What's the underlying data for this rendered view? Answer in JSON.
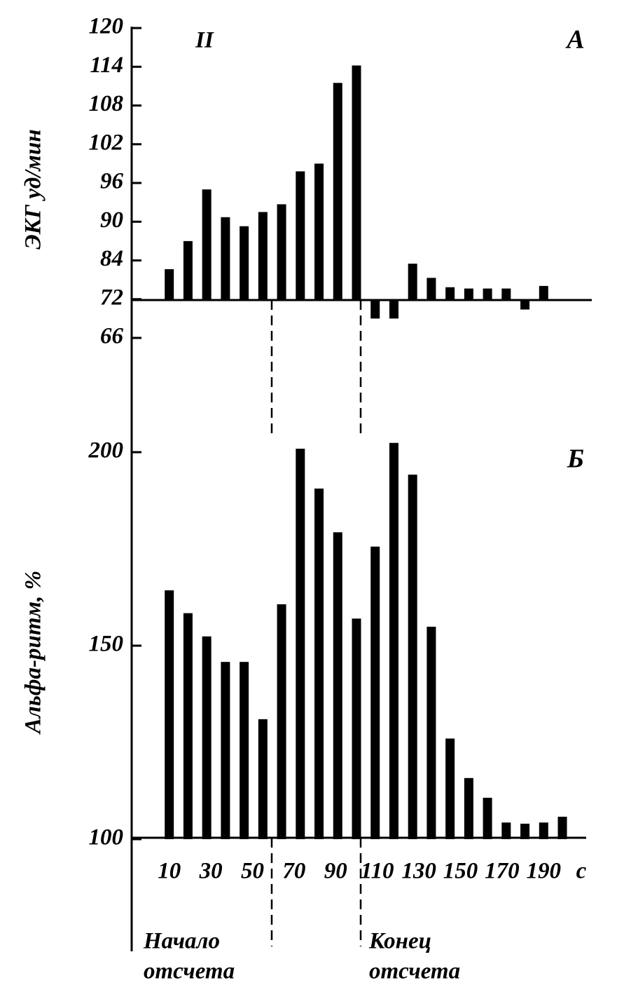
{
  "chart_data": [
    {
      "type": "bar",
      "panel": "А",
      "annotation": "II",
      "ylabel": "ЭКГ уд/мин",
      "ylim": [
        66,
        120
      ],
      "yticks": [
        120,
        114,
        108,
        102,
        96,
        90,
        84,
        72,
        66
      ],
      "baseline": 72,
      "color": "#000000",
      "xlim": [
        0,
        200
      ],
      "x": [
        10,
        19,
        28,
        37,
        46,
        55,
        64,
        73,
        82,
        91,
        100,
        109,
        118,
        127,
        136,
        145,
        154,
        163,
        172,
        181,
        190
      ],
      "values": [
        81.3,
        87,
        95,
        90.7,
        89.3,
        91.5,
        92.7,
        97.8,
        99,
        111.5,
        114.2,
        69,
        69,
        83,
        78.6,
        75.7,
        75.3,
        75.3,
        75.3,
        70.4,
        76.1
      ]
    },
    {
      "type": "bar",
      "panel": "Б",
      "ylabel": "Альфа-ритм, %",
      "xunit": "с",
      "ylim": [
        100,
        200
      ],
      "yticks": [
        200,
        150,
        100
      ],
      "color": "#000000",
      "xlim": [
        0,
        200
      ],
      "xticks": [
        10,
        30,
        50,
        70,
        90,
        110,
        130,
        150,
        170,
        190
      ],
      "x": [
        10,
        19,
        28,
        37,
        46,
        55,
        64,
        73,
        82,
        91,
        100,
        109,
        118,
        127,
        136,
        145,
        154,
        163,
        172,
        181,
        190,
        199
      ],
      "values": [
        164.3,
        158.4,
        152.4,
        145.8,
        145.8,
        131,
        160.7,
        200.9,
        190.6,
        179.3,
        157,
        175.6,
        202.4,
        194.2,
        154.9,
        126,
        115.8,
        110.7,
        104.3,
        104,
        104.3,
        105.8
      ],
      "annotations": [
        [
          "Начало",
          "отсчета"
        ],
        [
          "Конец",
          "отсчета"
        ]
      ]
    }
  ]
}
